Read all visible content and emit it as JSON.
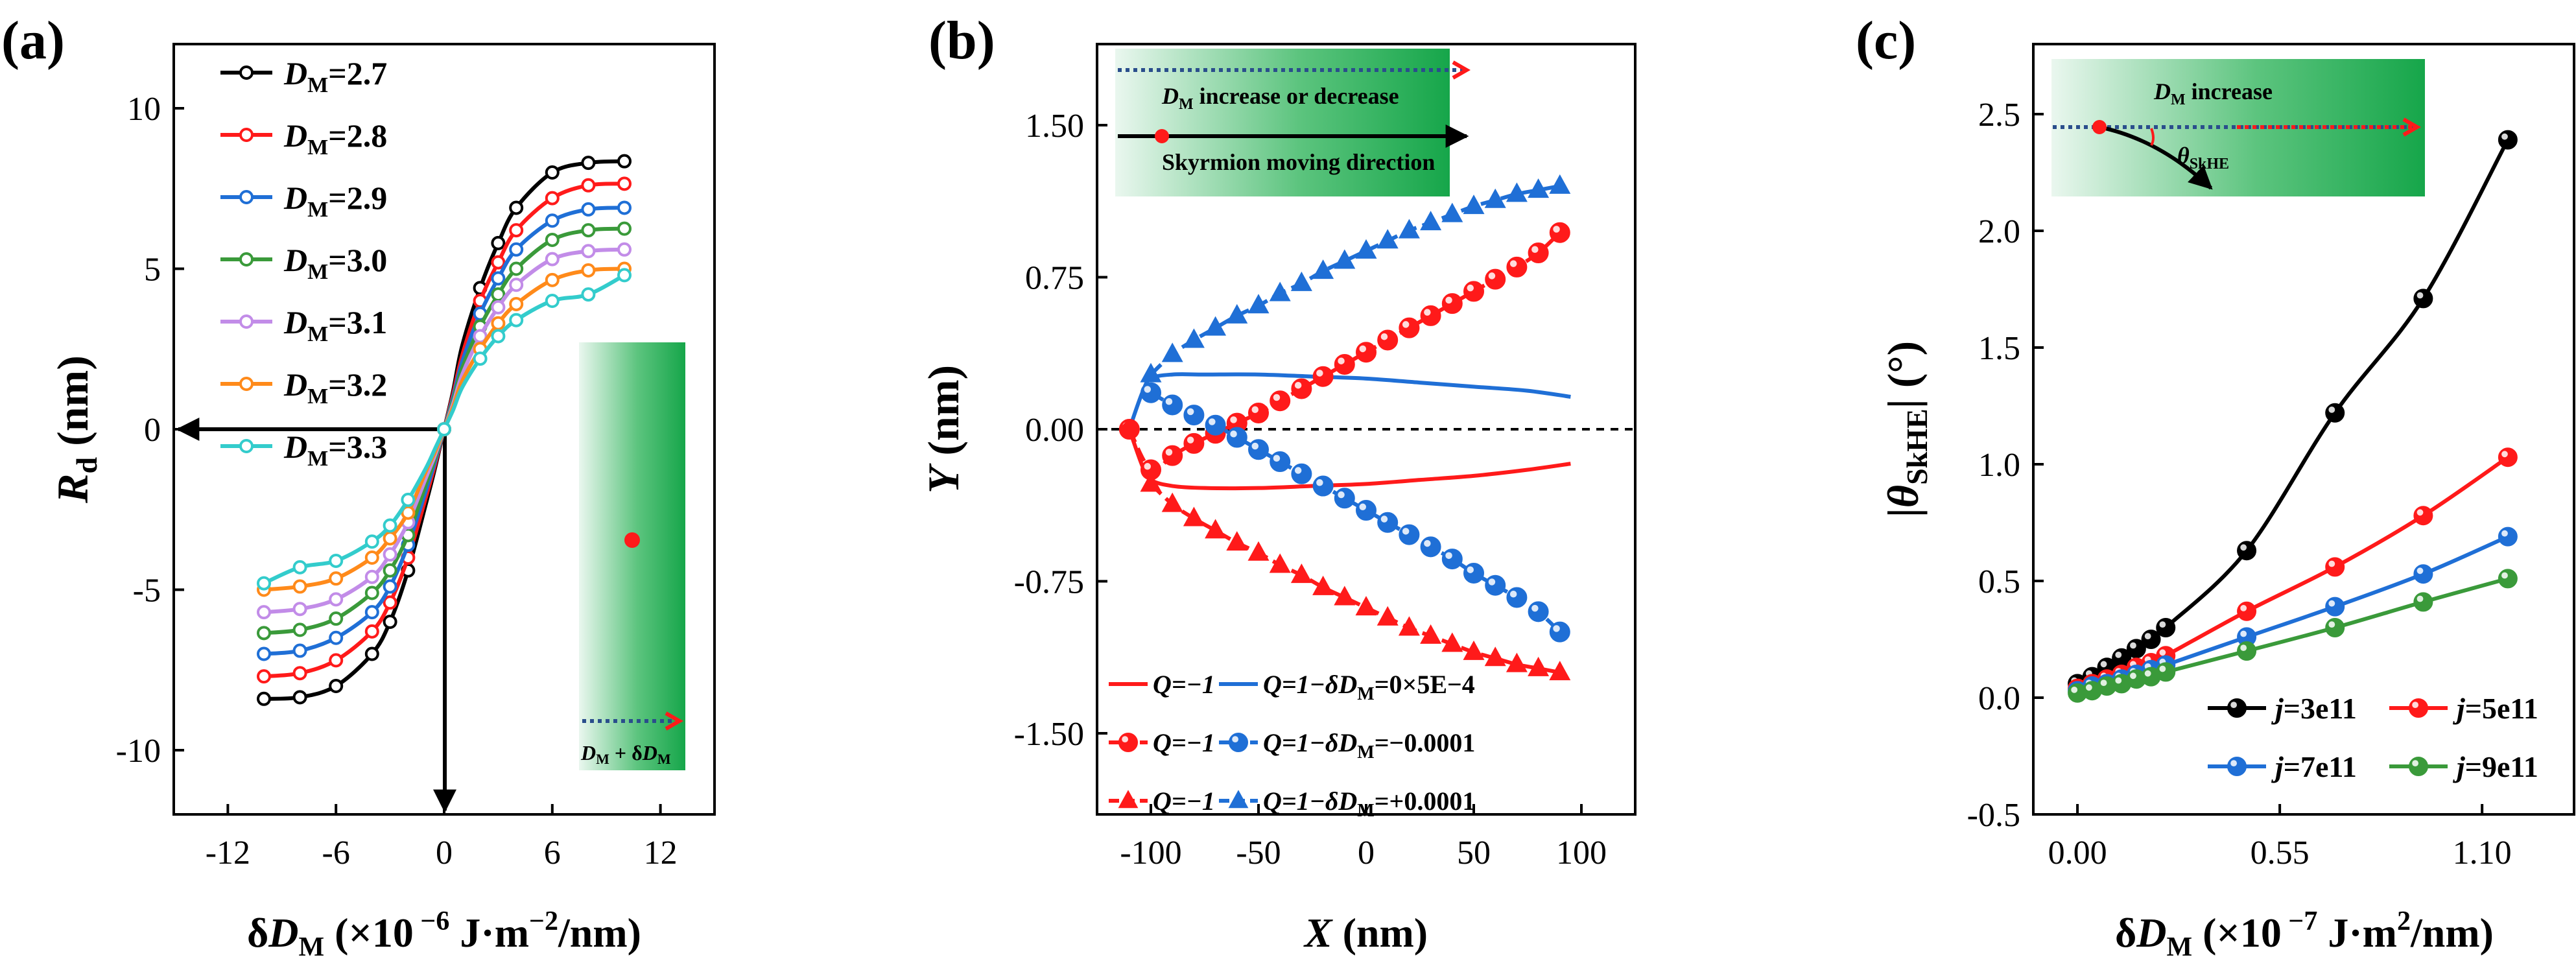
{
  "panel_labels": [
    "(a)",
    "(b)",
    "(c)"
  ],
  "colors": {
    "black": "#000000",
    "red": "#ff1a1a",
    "blue": "#1f6fd6",
    "green": "#3a9a3a",
    "violet": "#c28ce8",
    "orange": "#ff8a1a",
    "cyan": "#33cccc",
    "inset_dark": "#1aa84c",
    "inset_light": "#e9f6ee"
  },
  "chart_data": [
    {
      "type": "line",
      "panel": "(a)",
      "xlabel": "δD_M (×10^-6 J·m^-2/nm)",
      "ylabel": "R_d (nm)",
      "xlim": [
        -15,
        15
      ],
      "ylim": [
        -12,
        12
      ],
      "xticks": [
        -12,
        -6,
        0,
        6,
        12
      ],
      "yticks": [
        10,
        5,
        0,
        -5,
        -10
      ],
      "xtick_labels": [
        "-12",
        "-6",
        "0",
        "6",
        "12"
      ],
      "ytick_labels": [
        "10",
        "5",
        "0",
        "-5",
        "-10"
      ],
      "legend": "top-left",
      "series": [
        {
          "name": "D_M=2.7",
          "label_sym": "D",
          "label_sub": "M",
          "label_val": "=2.7",
          "color": "#000000",
          "x": [
            -10,
            -8,
            -6,
            -4,
            -3,
            -2,
            -1,
            -0.5,
            0,
            0.5,
            1,
            2,
            3,
            4,
            6,
            8,
            10
          ],
          "y": [
            -8.4,
            -8.35,
            -8.0,
            -7.0,
            -6.0,
            -4.4,
            -2.3,
            -1.2,
            0,
            1.2,
            2.6,
            4.4,
            5.8,
            6.9,
            8.0,
            8.3,
            8.35
          ]
        },
        {
          "name": "D_M=2.8",
          "label_sym": "D",
          "label_sub": "M",
          "label_val": "=2.8",
          "color": "#ff1a1a",
          "x": [
            -10,
            -8,
            -6,
            -4,
            -3,
            -2,
            -1,
            -0.5,
            0,
            0.5,
            1,
            2,
            3,
            4,
            6,
            8,
            10
          ],
          "y": [
            -7.7,
            -7.6,
            -7.2,
            -6.3,
            -5.4,
            -4.0,
            -2.1,
            -1.1,
            0,
            1.1,
            2.3,
            4.0,
            5.2,
            6.2,
            7.2,
            7.6,
            7.65
          ]
        },
        {
          "name": "D_M=2.9",
          "label_sym": "D",
          "label_sub": "M",
          "label_val": "=2.9",
          "color": "#1f6fd6",
          "x": [
            -10,
            -8,
            -6,
            -4,
            -3,
            -2,
            -1,
            -0.5,
            0,
            0.5,
            1,
            2,
            3,
            4,
            6,
            8,
            10
          ],
          "y": [
            -7.0,
            -6.9,
            -6.5,
            -5.7,
            -4.9,
            -3.6,
            -1.9,
            -1.0,
            0,
            1.0,
            2.1,
            3.6,
            4.7,
            5.6,
            6.5,
            6.85,
            6.9
          ]
        },
        {
          "name": "D_M=3.0",
          "label_sym": "D",
          "label_sub": "M",
          "label_val": "=3.0",
          "color": "#3a9a3a",
          "x": [
            -10,
            -8,
            -6,
            -4,
            -3,
            -2,
            -1,
            -0.5,
            0,
            0.5,
            1,
            2,
            3,
            4,
            6,
            8,
            10
          ],
          "y": [
            -6.35,
            -6.25,
            -5.9,
            -5.1,
            -4.4,
            -3.3,
            -1.7,
            -0.9,
            0,
            0.9,
            1.9,
            3.2,
            4.2,
            5.0,
            5.9,
            6.2,
            6.25
          ]
        },
        {
          "name": "D_M=3.1",
          "label_sym": "D",
          "label_sub": "M",
          "label_val": "=3.1",
          "color": "#c28ce8",
          "x": [
            -10,
            -8,
            -6,
            -4,
            -3,
            -2,
            -1,
            -0.5,
            0,
            0.5,
            1,
            2,
            3,
            4,
            6,
            8,
            10
          ],
          "y": [
            -5.7,
            -5.6,
            -5.3,
            -4.6,
            -3.9,
            -2.9,
            -1.5,
            -0.8,
            0,
            0.8,
            1.7,
            2.9,
            3.8,
            4.5,
            5.3,
            5.55,
            5.6
          ]
        },
        {
          "name": "D_M=3.2",
          "label_sym": "D",
          "label_sub": "M",
          "label_val": "=3.2",
          "color": "#ff8a1a",
          "x": [
            -10,
            -8,
            -6,
            -4,
            -3,
            -2,
            -1,
            -0.5,
            0,
            0.5,
            1,
            2,
            3,
            4,
            6,
            8,
            10
          ],
          "y": [
            -5.0,
            -4.9,
            -4.65,
            -4.0,
            -3.4,
            -2.6,
            -1.3,
            -0.7,
            0,
            0.7,
            1.5,
            2.5,
            3.3,
            3.9,
            4.65,
            4.95,
            5.0
          ]
        },
        {
          "name": "D_M=3.3",
          "label_sym": "D",
          "label_sub": "M",
          "label_val": "=3.3",
          "color": "#33cccc",
          "x": [
            -10,
            -8,
            -6,
            -4,
            -3,
            -2,
            -1,
            -0.5,
            0,
            0.5,
            1,
            2,
            3,
            4,
            6,
            8,
            10
          ],
          "y": [
            -4.8,
            -4.3,
            -4.1,
            -3.5,
            -3.0,
            -2.2,
            -1.2,
            -0.6,
            0,
            0.6,
            1.3,
            2.2,
            2.9,
            3.4,
            4.0,
            4.2,
            4.8
          ]
        }
      ],
      "inset_label": "D_M + δD_M",
      "inset_sym": "D",
      "inset_sub": "M",
      "inset_op": " + δ",
      "inset_sym2": "D",
      "inset_sub2": "M"
    },
    {
      "type": "line",
      "panel": "(b)",
      "xlabel": "X (nm)",
      "ylabel": "Y (nm)",
      "xlim": [
        -125,
        125
      ],
      "ylim": [
        -1.9,
        1.9
      ],
      "xticks": [
        -100,
        -50,
        0,
        50,
        100
      ],
      "yticks": [
        1.5,
        0.75,
        0,
        -0.75,
        -1.5
      ],
      "xtick_labels": [
        "-100",
        "-50",
        "0",
        "50",
        "100"
      ],
      "ytick_labels": [
        "1.50",
        "0.75",
        "0.00",
        "-0.75",
        "-1.50"
      ],
      "legend": "bottom-left",
      "legend_entries": [
        {
          "left": "Q=−1",
          "right": "Q=1−δD",
          "sub": "M",
          "value": "=0×5E−4",
          "marker": "none"
        },
        {
          "left": "Q=−1",
          "right": "Q=1−δD",
          "sub": "M",
          "value": "=−0.0001",
          "marker": "circle"
        },
        {
          "left": "Q=−1",
          "right": "Q=1−δD",
          "sub": "M",
          "value": "=+0.0001",
          "marker": "triangle"
        }
      ],
      "series": [
        {
          "name": "Q=-1, δD_M=0",
          "color": "#ff1a1a",
          "style": "solid",
          "marker": "none",
          "x": [
            -110,
            -104,
            -100,
            -90,
            -75,
            -50,
            -25,
            0,
            25,
            50,
            75,
            95
          ],
          "y": [
            0,
            -0.18,
            -0.25,
            -0.28,
            -0.29,
            -0.29,
            -0.28,
            -0.27,
            -0.25,
            -0.23,
            -0.2,
            -0.17
          ]
        },
        {
          "name": "Q=1, δD_M=0",
          "color": "#1f6fd6",
          "style": "solid",
          "marker": "none",
          "x": [
            -110,
            -104,
            -100,
            -90,
            -75,
            -50,
            -25,
            0,
            25,
            50,
            75,
            95
          ],
          "y": [
            0,
            0.18,
            0.25,
            0.27,
            0.27,
            0.27,
            0.26,
            0.25,
            0.23,
            0.21,
            0.19,
            0.16
          ]
        },
        {
          "name": "Q=-1, δD_M=-0.0001",
          "color": "#ff1a1a",
          "style": "dashed",
          "marker": "circle",
          "x": [
            -110,
            -100,
            -90,
            -80,
            -70,
            -60,
            -50,
            -40,
            -30,
            -20,
            -10,
            0,
            10,
            20,
            30,
            40,
            50,
            60,
            70,
            80,
            90
          ],
          "y": [
            0,
            -0.2,
            -0.13,
            -0.07,
            -0.02,
            0.03,
            0.08,
            0.14,
            0.2,
            0.26,
            0.32,
            0.38,
            0.44,
            0.5,
            0.56,
            0.62,
            0.68,
            0.74,
            0.8,
            0.87,
            0.97
          ]
        },
        {
          "name": "Q=1, δD_M=-0.0001",
          "color": "#1f6fd6",
          "style": "dashed",
          "marker": "circle",
          "x": [
            -100,
            -90,
            -80,
            -70,
            -60,
            -50,
            -40,
            -30,
            -20,
            -10,
            0,
            10,
            20,
            30,
            40,
            50,
            60,
            70,
            80,
            90
          ],
          "y": [
            0.18,
            0.12,
            0.07,
            0.02,
            -0.04,
            -0.1,
            -0.16,
            -0.22,
            -0.28,
            -0.34,
            -0.4,
            -0.46,
            -0.52,
            -0.58,
            -0.64,
            -0.71,
            -0.77,
            -0.83,
            -0.9,
            -1.0
          ]
        },
        {
          "name": "Q=-1, δD_M=+0.0001",
          "color": "#ff1a1a",
          "style": "dashed",
          "marker": "triangle",
          "x": [
            -100,
            -90,
            -80,
            -70,
            -60,
            -50,
            -40,
            -30,
            -20,
            -10,
            0,
            10,
            20,
            30,
            40,
            50,
            60,
            70,
            80,
            90
          ],
          "y": [
            -0.27,
            -0.37,
            -0.44,
            -0.5,
            -0.56,
            -0.61,
            -0.67,
            -0.72,
            -0.78,
            -0.83,
            -0.88,
            -0.93,
            -0.98,
            -1.02,
            -1.06,
            -1.1,
            -1.13,
            -1.16,
            -1.18,
            -1.2
          ]
        },
        {
          "name": "Q=1, δD_M=+0.0001",
          "color": "#1f6fd6",
          "style": "dashed",
          "marker": "triangle",
          "x": [
            -100,
            -90,
            -80,
            -70,
            -60,
            -50,
            -40,
            -30,
            -20,
            -10,
            0,
            10,
            20,
            30,
            40,
            50,
            60,
            70,
            80,
            90
          ],
          "y": [
            0.27,
            0.37,
            0.44,
            0.5,
            0.56,
            0.61,
            0.67,
            0.72,
            0.78,
            0.83,
            0.88,
            0.93,
            0.98,
            1.02,
            1.06,
            1.1,
            1.13,
            1.16,
            1.18,
            1.2
          ]
        }
      ],
      "reference_line": {
        "y": 0,
        "style": "dashed"
      },
      "inset_text_top": "D_M increase or decrease",
      "inset_top_sym": "D",
      "inset_top_sub": "M",
      "inset_top_rest": " increase or decrease",
      "inset_text_bottom": "Skyrmion moving direction"
    },
    {
      "type": "line",
      "panel": "(c)",
      "xlabel": "δD_M (×10^-7 J·m^2/nm)",
      "ylabel": "|θ_SkHE| (°)",
      "xlim": [
        -0.12,
        1.35
      ],
      "ylim": [
        -0.5,
        2.8
      ],
      "xticks": [
        0.0,
        0.55,
        1.1
      ],
      "yticks": [
        2.5,
        2.0,
        1.5,
        1.0,
        0.5,
        0.0,
        -0.5
      ],
      "xtick_labels": [
        "0.00",
        "0.55",
        "1.10"
      ],
      "ytick_labels": [
        "2.5",
        "2.0",
        "1.5",
        "1.0",
        "0.5",
        "0.0",
        "-0.5"
      ],
      "legend": "bottom-right",
      "series": [
        {
          "name": "j=3e11",
          "label_sym": "j",
          "label_val": "=3e11",
          "color": "#000000",
          "x": [
            0.0,
            0.04,
            0.08,
            0.12,
            0.16,
            0.2,
            0.24,
            0.46,
            0.7,
            0.94,
            1.17
          ],
          "y": [
            0.06,
            0.09,
            0.13,
            0.17,
            0.21,
            0.25,
            0.3,
            0.63,
            1.22,
            1.71,
            2.39
          ]
        },
        {
          "name": "j=5e11",
          "label_sym": "j",
          "label_val": "=5e11",
          "color": "#ff1a1a",
          "x": [
            0.0,
            0.04,
            0.08,
            0.12,
            0.16,
            0.2,
            0.24,
            0.46,
            0.7,
            0.94,
            1.17
          ],
          "y": [
            0.04,
            0.06,
            0.08,
            0.1,
            0.13,
            0.15,
            0.18,
            0.37,
            0.56,
            0.78,
            1.03
          ]
        },
        {
          "name": "j=7e11",
          "label_sym": "j",
          "label_val": "=7e11",
          "color": "#1f6fd6",
          "x": [
            0.0,
            0.04,
            0.08,
            0.12,
            0.16,
            0.2,
            0.24,
            0.46,
            0.7,
            0.94,
            1.17
          ],
          "y": [
            0.03,
            0.05,
            0.06,
            0.08,
            0.1,
            0.12,
            0.14,
            0.26,
            0.39,
            0.53,
            0.69
          ]
        },
        {
          "name": "j=9e11",
          "label_sym": "j",
          "label_val": "=9e11",
          "color": "#3a9a3a",
          "x": [
            0.0,
            0.04,
            0.08,
            0.12,
            0.16,
            0.2,
            0.24,
            0.46,
            0.7,
            0.94,
            1.17
          ],
          "y": [
            0.02,
            0.03,
            0.05,
            0.06,
            0.08,
            0.09,
            0.11,
            0.2,
            0.3,
            0.41,
            0.51
          ]
        }
      ],
      "inset_text": "D_M increase",
      "inset_sym": "D",
      "inset_sub": "M",
      "inset_rest": " increase",
      "inset_angle_sym": "θ",
      "inset_angle_sub": "SkHE"
    }
  ]
}
